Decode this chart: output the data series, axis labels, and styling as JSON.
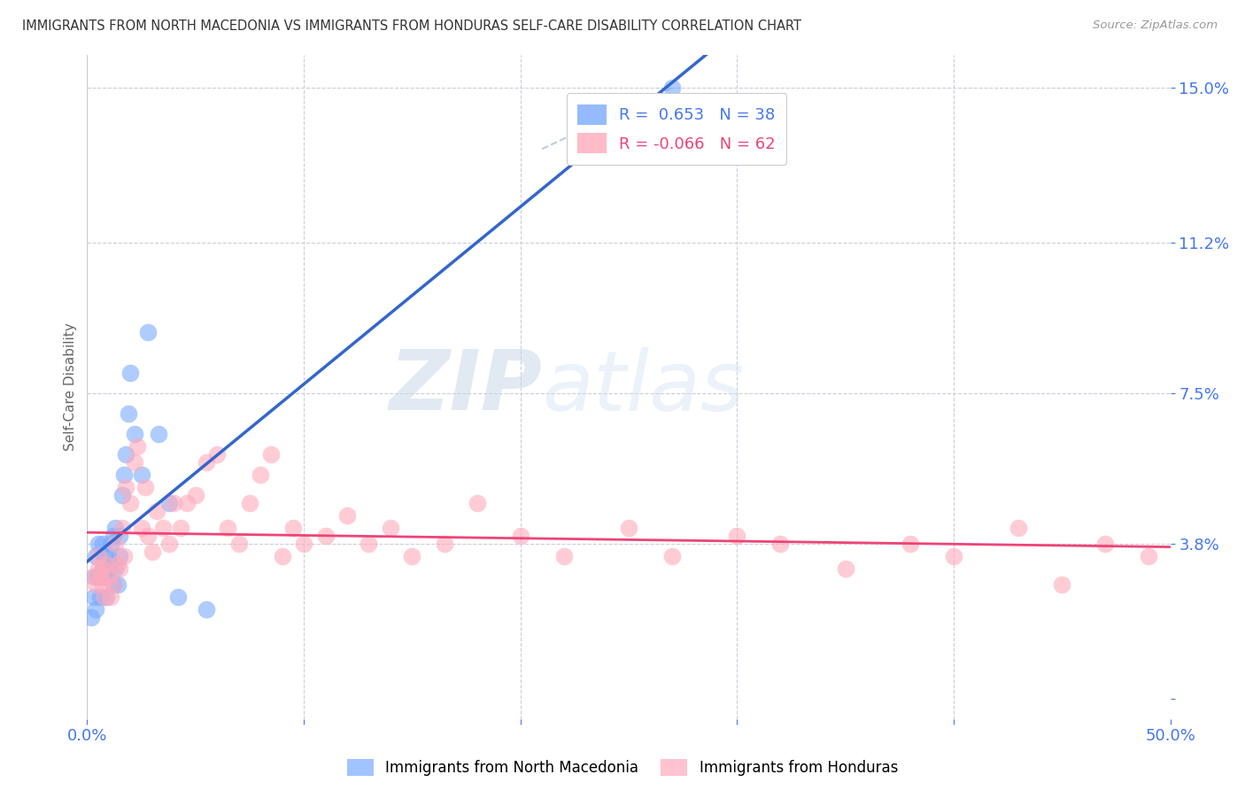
{
  "title": "IMMIGRANTS FROM NORTH MACEDONIA VS IMMIGRANTS FROM HONDURAS SELF-CARE DISABILITY CORRELATION CHART",
  "source": "Source: ZipAtlas.com",
  "ylabel": "Self-Care Disability",
  "yticks": [
    0.0,
    0.038,
    0.075,
    0.112,
    0.15
  ],
  "ytick_labels": [
    "",
    "3.8%",
    "7.5%",
    "11.2%",
    "15.0%"
  ],
  "xlim": [
    0.0,
    0.5
  ],
  "ylim": [
    -0.005,
    0.158
  ],
  "r_blue": 0.653,
  "n_blue": 38,
  "r_pink": -0.066,
  "n_pink": 62,
  "blue_color": "#7aaaff",
  "pink_color": "#ffaabb",
  "trend_blue": "#3366cc",
  "trend_pink": "#ee4477",
  "watermark_zip": "ZIP",
  "watermark_atlas": "atlas",
  "blue_scatter_x": [
    0.002,
    0.003,
    0.003,
    0.004,
    0.004,
    0.005,
    0.005,
    0.006,
    0.006,
    0.007,
    0.007,
    0.008,
    0.008,
    0.009,
    0.009,
    0.01,
    0.01,
    0.011,
    0.012,
    0.012,
    0.013,
    0.013,
    0.014,
    0.015,
    0.015,
    0.016,
    0.017,
    0.018,
    0.019,
    0.02,
    0.022,
    0.025,
    0.028,
    0.033,
    0.038,
    0.042,
    0.055,
    0.27
  ],
  "blue_scatter_y": [
    0.02,
    0.025,
    0.03,
    0.022,
    0.035,
    0.03,
    0.038,
    0.025,
    0.03,
    0.032,
    0.038,
    0.03,
    0.035,
    0.025,
    0.033,
    0.032,
    0.035,
    0.038,
    0.028,
    0.04,
    0.032,
    0.042,
    0.028,
    0.035,
    0.04,
    0.05,
    0.055,
    0.06,
    0.07,
    0.08,
    0.065,
    0.055,
    0.09,
    0.065,
    0.048,
    0.025,
    0.022,
    0.15
  ],
  "pink_scatter_x": [
    0.003,
    0.004,
    0.005,
    0.005,
    0.006,
    0.007,
    0.007,
    0.008,
    0.009,
    0.01,
    0.011,
    0.012,
    0.013,
    0.014,
    0.015,
    0.016,
    0.017,
    0.018,
    0.02,
    0.022,
    0.023,
    0.025,
    0.027,
    0.028,
    0.03,
    0.032,
    0.035,
    0.038,
    0.04,
    0.043,
    0.046,
    0.05,
    0.055,
    0.06,
    0.065,
    0.07,
    0.075,
    0.08,
    0.085,
    0.09,
    0.095,
    0.1,
    0.11,
    0.12,
    0.13,
    0.14,
    0.15,
    0.165,
    0.18,
    0.2,
    0.22,
    0.25,
    0.27,
    0.3,
    0.32,
    0.35,
    0.38,
    0.4,
    0.43,
    0.45,
    0.47,
    0.49
  ],
  "pink_scatter_y": [
    0.03,
    0.028,
    0.032,
    0.035,
    0.03,
    0.028,
    0.032,
    0.025,
    0.033,
    0.03,
    0.025,
    0.028,
    0.038,
    0.033,
    0.032,
    0.042,
    0.035,
    0.052,
    0.048,
    0.058,
    0.062,
    0.042,
    0.052,
    0.04,
    0.036,
    0.046,
    0.042,
    0.038,
    0.048,
    0.042,
    0.048,
    0.05,
    0.058,
    0.06,
    0.042,
    0.038,
    0.048,
    0.055,
    0.06,
    0.035,
    0.042,
    0.038,
    0.04,
    0.045,
    0.038,
    0.042,
    0.035,
    0.038,
    0.048,
    0.04,
    0.035,
    0.042,
    0.035,
    0.04,
    0.038,
    0.032,
    0.038,
    0.035,
    0.042,
    0.028,
    0.038,
    0.035
  ],
  "legend_r_blue_text": "R =  0.653   N = 38",
  "legend_r_pink_text": "R = -0.066   N = 62",
  "legend_blue_label": "Immigrants from North Macedonia",
  "legend_pink_label": "Immigrants from Honduras"
}
